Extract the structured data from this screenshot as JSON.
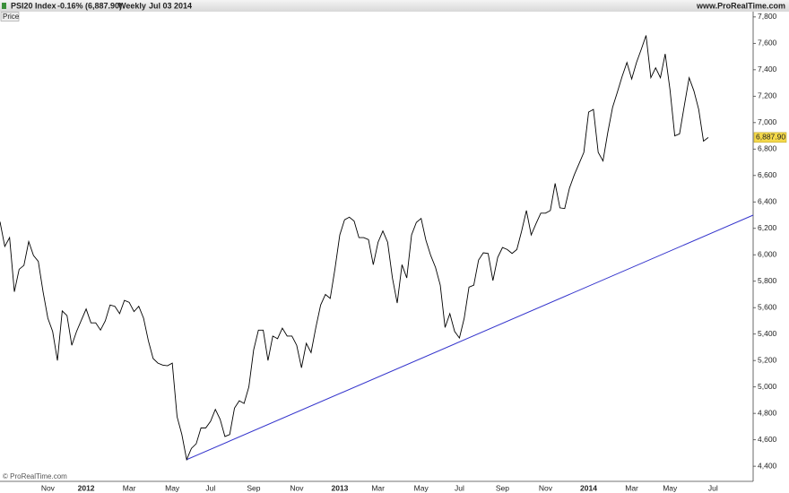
{
  "chart_data": {
    "type": "line",
    "title": "PSI20 Index",
    "change": "-0.16% (6,887.90)",
    "period": "Weekly",
    "date": "Jul 03 2014",
    "source": "www.ProRealTime.com",
    "panel_label": "Price",
    "watermark": "© ProRealTime.com",
    "categories": [
      null,
      null,
      null,
      null,
      null,
      null,
      null,
      null,
      null,
      null,
      "Nov",
      null,
      null,
      null,
      null,
      null,
      null,
      null,
      "2012",
      null,
      null,
      null,
      null,
      null,
      null,
      null,
      null,
      "Mar",
      null,
      null,
      null,
      null,
      null,
      null,
      null,
      null,
      "May",
      null,
      null,
      null,
      null,
      null,
      null,
      null,
      "Jul",
      null,
      null,
      null,
      null,
      null,
      null,
      null,
      null,
      "Sep",
      null,
      null,
      null,
      null,
      null,
      null,
      null,
      null,
      "Nov",
      null,
      null,
      null,
      null,
      null,
      null,
      null,
      null,
      "2013",
      null,
      null,
      null,
      null,
      null,
      null,
      null,
      "Mar",
      null,
      null,
      null,
      null,
      null,
      null,
      null,
      null,
      "May",
      null,
      null,
      null,
      null,
      null,
      null,
      null,
      "Jul",
      null,
      null,
      null,
      null,
      null,
      null,
      null,
      null,
      "Sep",
      null,
      null,
      null,
      null,
      null,
      null,
      null,
      null,
      "Nov",
      null,
      null,
      null,
      null,
      null,
      null,
      null,
      null,
      "2014",
      null,
      null,
      null,
      null,
      null,
      null,
      null,
      null,
      "Mar",
      null,
      null,
      null,
      null,
      null,
      null,
      null,
      "May",
      null,
      null,
      null,
      null,
      null,
      null,
      null,
      null,
      "Jul",
      null,
      null,
      null,
      null,
      null,
      null,
      null,
      null
    ],
    "color": "#000000",
    "values": [
      6250,
      6063,
      6130,
      5720,
      5890,
      5920,
      6100,
      5995,
      5950,
      5720,
      5520,
      5420,
      5200,
      5575,
      5540,
      5315,
      5420,
      5505,
      5590,
      5485,
      5485,
      5430,
      5500,
      5620,
      5610,
      5555,
      5655,
      5640,
      5570,
      5610,
      5520,
      5350,
      5215,
      5180,
      5165,
      5160,
      5180,
      4775,
      4640,
      4450,
      4535,
      4570,
      4690,
      4690,
      4740,
      4830,
      4755,
      4625,
      4640,
      4840,
      4895,
      4875,
      5000,
      5280,
      5430,
      5430,
      5200,
      5385,
      5365,
      5445,
      5385,
      5385,
      5315,
      5145,
      5330,
      5260,
      5450,
      5620,
      5700,
      5670,
      5895,
      6150,
      6265,
      6285,
      6255,
      6130,
      6130,
      6115,
      5925,
      6095,
      6180,
      6095,
      5825,
      5635,
      5925,
      5825,
      6150,
      6245,
      6275,
      6110,
      5995,
      5905,
      5770,
      5450,
      5555,
      5420,
      5370,
      5520,
      5755,
      5770,
      5960,
      6015,
      6010,
      5805,
      5980,
      6055,
      6040,
      6010,
      6040,
      6180,
      6335,
      6150,
      6235,
      6315,
      6315,
      6335,
      6540,
      6355,
      6350,
      6505,
      6605,
      6690,
      6775,
      7080,
      7100,
      6775,
      6710,
      6925,
      7115,
      7230,
      7350,
      7455,
      7330,
      7455,
      7555,
      7660,
      7340,
      7415,
      7340,
      7520,
      7250,
      6900,
      6915,
      7130,
      7340,
      7240,
      7100,
      6860,
      6887.9,
      null,
      null,
      null,
      null,
      null,
      null,
      null,
      null,
      null
    ],
    "value_labels": [
      null,
      null,
      null,
      null,
      null,
      null,
      null,
      null,
      null,
      null,
      null,
      null,
      null,
      null,
      null,
      null,
      null,
      null,
      null,
      null,
      null,
      null,
      null,
      null,
      null,
      null,
      null,
      null,
      null,
      null,
      null,
      null,
      null,
      null,
      null,
      null,
      null,
      null,
      null,
      null,
      null,
      null,
      null,
      null,
      null,
      null,
      null,
      null,
      null,
      null,
      null,
      null,
      null,
      null,
      null,
      null,
      null,
      null,
      null,
      null,
      null,
      null,
      null,
      null,
      null,
      null,
      null,
      null,
      null,
      null,
      null,
      null,
      null,
      null,
      null,
      null,
      null,
      null,
      null,
      null,
      null,
      null,
      null,
      null,
      null,
      null,
      null,
      null,
      null,
      null,
      null,
      null,
      null,
      null,
      null,
      null,
      null,
      null,
      null,
      null,
      null,
      null,
      null,
      null,
      null,
      null,
      null,
      null,
      null,
      null,
      null,
      null,
      null,
      null,
      null,
      null,
      null,
      null,
      null,
      null,
      null,
      null,
      null,
      null,
      null,
      null,
      null,
      null,
      null,
      null,
      null,
      null,
      null,
      null,
      null,
      null,
      null,
      null,
      null,
      null,
      null,
      null,
      null,
      null,
      null,
      null,
      null,
      null,
      "6,887.90",
      null,
      null,
      null,
      null,
      null,
      null,
      null,
      null,
      null
    ],
    "trendline": {
      "start": 4450,
      "end": 6300,
      "color": "#3333cc"
    },
    "ylim": [
      4350,
      7850
    ],
    "yticks": [
      {
        "value": 4400,
        "label": "4,400"
      },
      {
        "value": 4600,
        "label": "4,600"
      },
      {
        "value": 4800,
        "label": "4,800"
      },
      {
        "value": 5000,
        "label": "5,000"
      },
      {
        "value": 5200,
        "label": "5,200"
      },
      {
        "value": 5400,
        "label": "5,400"
      },
      {
        "value": 5600,
        "label": "5,600"
      },
      {
        "value": 5800,
        "label": "5,800"
      },
      {
        "value": 6000,
        "label": "6,000"
      },
      {
        "value": 6200,
        "label": "6,200"
      },
      {
        "value": 6400,
        "label": "6,400"
      },
      {
        "value": 6600,
        "label": "6,600"
      },
      {
        "value": 6800,
        "label": "6,800"
      },
      {
        "value": 7000,
        "label": "7,000"
      },
      {
        "value": 7200,
        "label": "7,200"
      },
      {
        "value": 7400,
        "label": "7,400"
      },
      {
        "value": 7600,
        "label": "7,600"
      },
      {
        "value": 7800,
        "label": "7,800"
      }
    ],
    "grid": false
  }
}
